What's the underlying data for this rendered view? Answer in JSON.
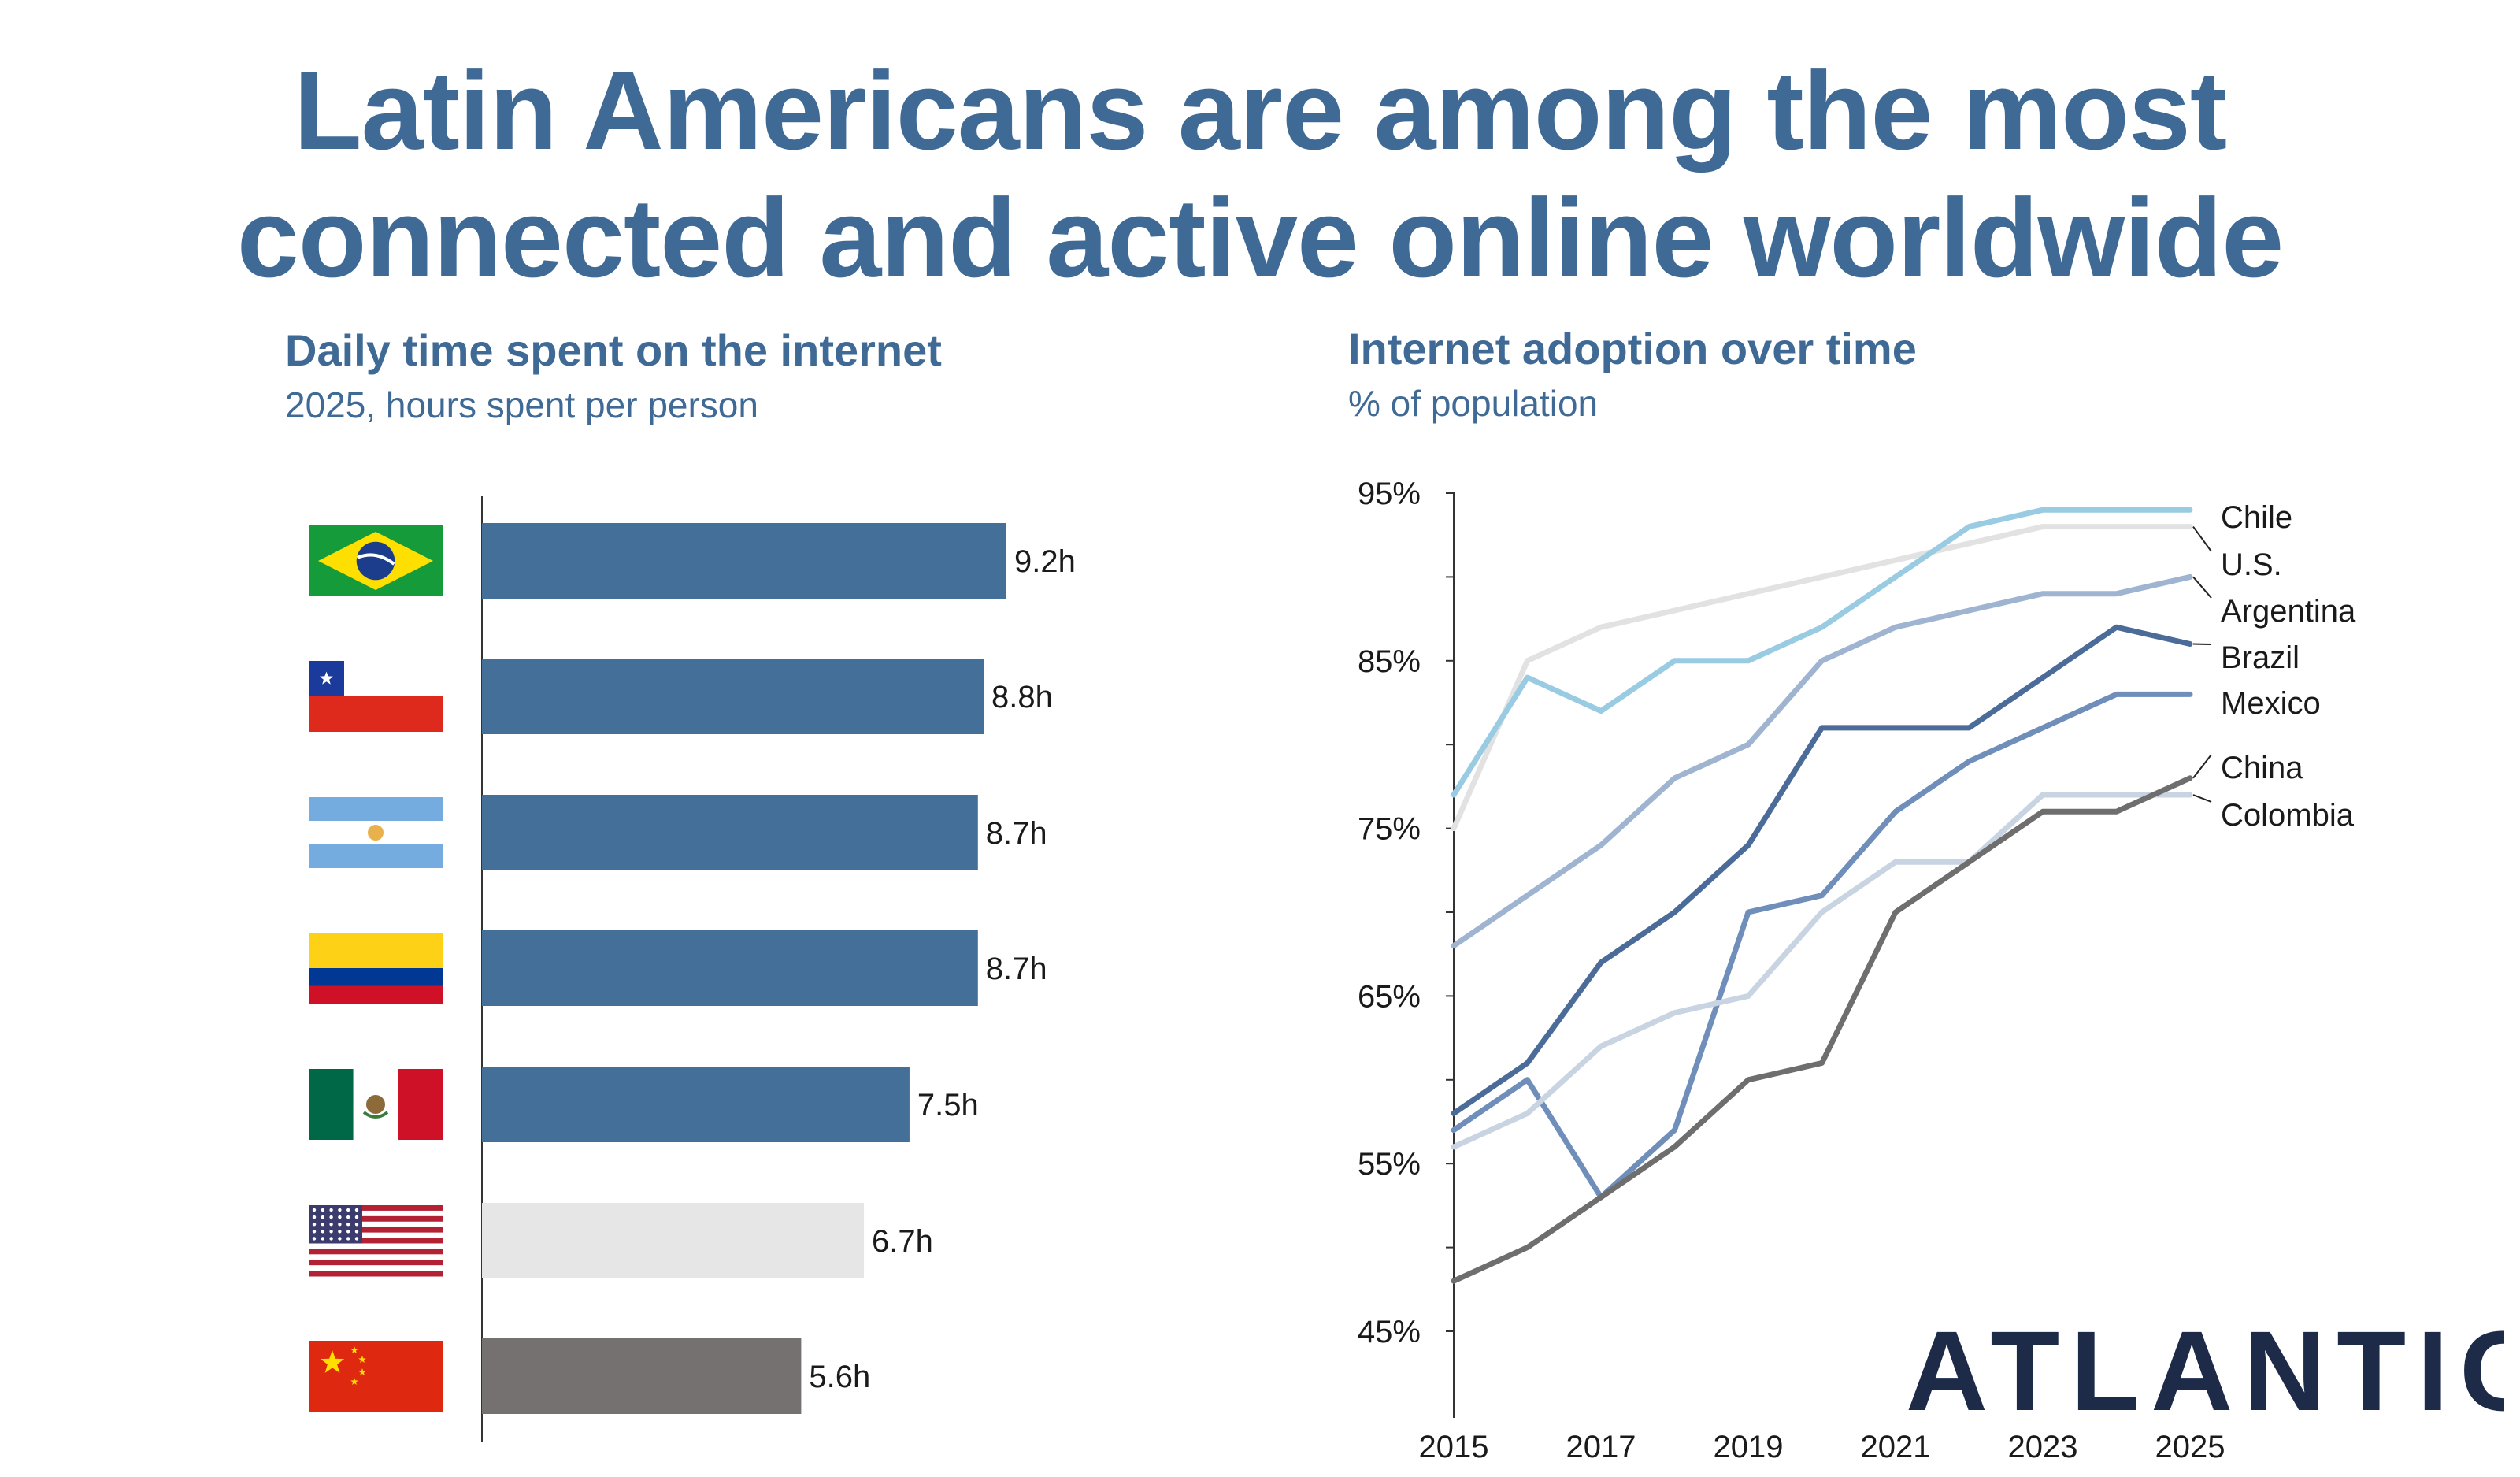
{
  "page": {
    "title_line1": "Latin Americans are among the most",
    "title_line2": "connected and active online worldwide",
    "brand": "ATLANTICO"
  },
  "colors": {
    "title": "#406a96",
    "highlight_bar": "#436f98",
    "us_bar": "#e6e6e6",
    "china_bar": "#757170",
    "text": "#1a1a1a"
  },
  "chart_data": [
    {
      "type": "bar",
      "orientation": "horizontal",
      "title": "Daily time spent on the internet",
      "subtitle": "2025, hours spent per person",
      "categories": [
        "Brazil",
        "Chile",
        "Argentina",
        "Colombia",
        "Mexico",
        "United States",
        "China"
      ],
      "flags": [
        "brazil-flag-icon",
        "chile-flag-icon",
        "argentina-flag-icon",
        "colombia-flag-icon",
        "mexico-flag-icon",
        "usa-flag-icon",
        "china-flag-icon"
      ],
      "values": [
        9.2,
        8.8,
        8.7,
        8.7,
        7.5,
        6.7,
        5.6
      ],
      "labels": [
        "9.2h",
        "8.8h",
        "8.7h",
        "8.7h",
        "7.5h",
        "6.7h",
        "5.6h"
      ],
      "bar_colors": [
        "#436f98",
        "#436f98",
        "#436f98",
        "#436f98",
        "#436f98",
        "#e6e6e6",
        "#757170"
      ],
      "xlim": [
        0,
        10
      ]
    },
    {
      "type": "line",
      "title": "Internet adoption over time",
      "subtitle": "% of population",
      "x": [
        2015,
        2016,
        2017,
        2018,
        2019,
        2020,
        2021,
        2022,
        2023,
        2024,
        2025
      ],
      "xticks": [
        2015,
        2017,
        2019,
        2021,
        2023,
        2025
      ],
      "xtick_labels": [
        "2015",
        "2017",
        "2019",
        "2021",
        "2023",
        "2025"
      ],
      "ylim": [
        45,
        95
      ],
      "yticks": [
        45,
        55,
        65,
        75,
        85,
        95
      ],
      "ytick_labels": [
        "45%",
        "55%",
        "65%",
        "75%",
        "85%",
        "95%"
      ],
      "grid": false,
      "series": [
        {
          "name": "U.S.",
          "color": "#e2e2e2",
          "values": [
            75,
            85,
            87,
            88,
            89,
            90,
            91,
            92,
            93,
            93,
            93
          ]
        },
        {
          "name": "Chile",
          "color": "#99cbe2",
          "values": [
            77,
            84,
            82,
            85,
            85,
            87,
            90,
            93,
            94,
            94,
            94
          ]
        },
        {
          "name": "Argentina",
          "color": "#9fb4d0",
          "values": [
            68,
            71,
            74,
            78,
            80,
            85,
            87,
            88,
            89,
            89,
            90
          ]
        },
        {
          "name": "Brazil",
          "color": "#4b6b98",
          "values": [
            58,
            61,
            67,
            70,
            74,
            81,
            81,
            81,
            84,
            87,
            86
          ]
        },
        {
          "name": "Mexico",
          "color": "#6f8eba",
          "values": [
            57,
            60,
            53,
            57,
            70,
            71,
            76,
            79,
            81,
            83,
            83
          ]
        },
        {
          "name": "Colombia",
          "color": "#c9d4e3",
          "values": [
            56,
            58,
            62,
            64,
            65,
            70,
            73,
            73,
            77,
            77,
            77
          ]
        },
        {
          "name": "China",
          "color": "#6e6e6e",
          "values": [
            48,
            50,
            53,
            56,
            60,
            61,
            70,
            73,
            76,
            76,
            78
          ]
        }
      ],
      "legend_order": [
        "Chile",
        "U.S.",
        "Argentina",
        "Brazil",
        "Mexico",
        "China",
        "Colombia"
      ],
      "legend_placement": "right"
    }
  ]
}
